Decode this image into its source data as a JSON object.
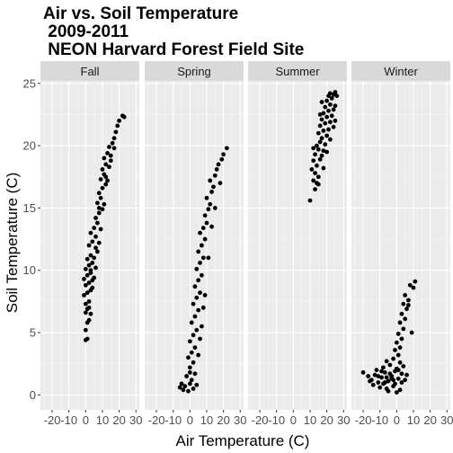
{
  "chart_data": {
    "type": "scatter",
    "title_lines": [
      "Air vs. Soil Temperature",
      "2009-2011",
      "NEON Harvard Forest Field Site"
    ],
    "xlabel": "Air Temperature (C)",
    "ylabel": "Soil Temperature (C)",
    "xlim": [
      -27,
      32
    ],
    "ylim": [
      -1.2,
      25.2
    ],
    "x_ticks": [
      -20,
      -10,
      0,
      10,
      20,
      30
    ],
    "y_ticks": [
      0,
      5,
      10,
      15,
      20,
      25
    ],
    "grid": true,
    "legend": "none",
    "point_color": "#000000",
    "panel_background": "#ebebeb",
    "strip_background": "#d9d9d9",
    "facets": [
      {
        "name": "Fall",
        "points": [
          [
            0,
            4.4
          ],
          [
            1,
            4.5
          ],
          [
            0,
            5.2
          ],
          [
            1,
            5.8
          ],
          [
            2,
            6.0
          ],
          [
            0,
            6.6
          ],
          [
            1,
            6.9
          ],
          [
            3,
            6.5
          ],
          [
            0,
            7.3
          ],
          [
            2,
            7.5
          ],
          [
            -1,
            8.0
          ],
          [
            1,
            8.2
          ],
          [
            3,
            8.4
          ],
          [
            0,
            8.8
          ],
          [
            2,
            9.0
          ],
          [
            4,
            8.6
          ],
          [
            -1,
            9.3
          ],
          [
            1,
            9.6
          ],
          [
            3,
            9.8
          ],
          [
            5,
            9.4
          ],
          [
            0,
            10.1
          ],
          [
            2,
            10.4
          ],
          [
            4,
            10.6
          ],
          [
            6,
            10.2
          ],
          [
            1,
            10.9
          ],
          [
            3,
            11.2
          ],
          [
            5,
            11.0
          ],
          [
            7,
            11.5
          ],
          [
            2,
            12.0
          ],
          [
            4,
            12.3
          ],
          [
            6,
            12.7
          ],
          [
            8,
            12.2
          ],
          [
            3,
            13.0
          ],
          [
            5,
            13.4
          ],
          [
            7,
            13.8
          ],
          [
            9,
            13.3
          ],
          [
            6,
            14.2
          ],
          [
            8,
            14.6
          ],
          [
            10,
            14.9
          ],
          [
            7,
            15.4
          ],
          [
            9,
            15.8
          ],
          [
            11,
            15.3
          ],
          [
            8,
            16.2
          ],
          [
            10,
            16.6
          ],
          [
            12,
            16.9
          ],
          [
            9,
            17.3
          ],
          [
            11,
            17.7
          ],
          [
            13,
            17.2
          ],
          [
            10,
            18.1
          ],
          [
            12,
            18.5
          ],
          [
            14,
            18.3
          ],
          [
            11,
            19.0
          ],
          [
            13,
            19.4
          ],
          [
            15,
            19.2
          ],
          [
            14,
            19.9
          ],
          [
            16,
            20.2
          ],
          [
            17,
            20.6
          ],
          [
            18,
            21.1
          ],
          [
            19,
            21.6
          ],
          [
            20,
            22.0
          ],
          [
            22,
            22.4
          ],
          [
            23,
            22.3
          ],
          [
            2,
            7.0
          ],
          [
            4,
            9.2
          ],
          [
            6,
            11.8
          ],
          [
            8,
            15.0
          ],
          [
            12,
            17.5
          ],
          [
            15,
            18.8
          ],
          [
            17,
            19.8
          ],
          [
            3,
            10.0
          ]
        ]
      },
      {
        "name": "Spring",
        "points": [
          [
            -6,
            0.6
          ],
          [
            -3,
            0.7
          ],
          [
            -1,
            0.3
          ],
          [
            0,
            0.9
          ],
          [
            2,
            0.5
          ],
          [
            4,
            0.8
          ],
          [
            -4,
            0.4
          ],
          [
            1,
            1.2
          ],
          [
            -2,
            1.5
          ],
          [
            3,
            1.7
          ],
          [
            0,
            2.2
          ],
          [
            2,
            2.6
          ],
          [
            -1,
            3.0
          ],
          [
            1,
            3.4
          ],
          [
            3,
            3.8
          ],
          [
            0,
            4.3
          ],
          [
            2,
            4.8
          ],
          [
            4,
            5.2
          ],
          [
            1,
            5.8
          ],
          [
            3,
            6.3
          ],
          [
            5,
            6.8
          ],
          [
            2,
            7.3
          ],
          [
            4,
            7.8
          ],
          [
            6,
            8.2
          ],
          [
            3,
            8.7
          ],
          [
            5,
            9.2
          ],
          [
            7,
            9.6
          ],
          [
            4,
            10.1
          ],
          [
            6,
            10.6
          ],
          [
            8,
            11.0
          ],
          [
            5,
            11.5
          ],
          [
            7,
            12.0
          ],
          [
            9,
            12.5
          ],
          [
            6,
            13.0
          ],
          [
            8,
            13.4
          ],
          [
            10,
            13.8
          ],
          [
            9,
            14.4
          ],
          [
            11,
            14.9
          ],
          [
            12,
            15.3
          ],
          [
            10,
            15.8
          ],
          [
            13,
            16.3
          ],
          [
            14,
            16.7
          ],
          [
            12,
            17.2
          ],
          [
            15,
            17.6
          ],
          [
            16,
            18.1
          ],
          [
            17,
            18.5
          ],
          [
            19,
            18.9
          ],
          [
            20,
            19.3
          ],
          [
            22,
            19.8
          ],
          [
            -5,
            0.9
          ],
          [
            5,
            3.2
          ],
          [
            7,
            5.5
          ],
          [
            9,
            8.0
          ],
          [
            11,
            11.0
          ],
          [
            13,
            13.5
          ],
          [
            15,
            15.0
          ],
          [
            18,
            17.0
          ],
          [
            0,
            1.8
          ],
          [
            6,
            4.5
          ],
          [
            8,
            7.0
          ]
        ]
      },
      {
        "name": "Summer",
        "points": [
          [
            10,
            15.6
          ],
          [
            12,
            17.2
          ],
          [
            13,
            17.8
          ],
          [
            11,
            18.1
          ],
          [
            14,
            18.4
          ],
          [
            15,
            17.5
          ],
          [
            12,
            18.8
          ],
          [
            16,
            18.9
          ],
          [
            13,
            19.3
          ],
          [
            17,
            19.2
          ],
          [
            15,
            19.7
          ],
          [
            18,
            19.6
          ],
          [
            14,
            20.0
          ],
          [
            16,
            20.3
          ],
          [
            19,
            20.1
          ],
          [
            17,
            20.6
          ],
          [
            20,
            20.8
          ],
          [
            15,
            21.0
          ],
          [
            18,
            21.2
          ],
          [
            21,
            21.3
          ],
          [
            16,
            21.6
          ],
          [
            19,
            21.8
          ],
          [
            22,
            21.9
          ],
          [
            17,
            22.1
          ],
          [
            20,
            22.3
          ],
          [
            23,
            22.4
          ],
          [
            18,
            22.6
          ],
          [
            21,
            22.8
          ],
          [
            24,
            22.9
          ],
          [
            19,
            23.1
          ],
          [
            22,
            23.3
          ],
          [
            25,
            23.2
          ],
          [
            20,
            23.6
          ],
          [
            23,
            23.8
          ],
          [
            21,
            24.0
          ],
          [
            24,
            24.1
          ],
          [
            22,
            24.2
          ],
          [
            25,
            24.3
          ],
          [
            14,
            17.0
          ],
          [
            18,
            18.2
          ],
          [
            13,
            16.5
          ],
          [
            15,
            16.9
          ],
          [
            20,
            19.5
          ],
          [
            24,
            21.5
          ],
          [
            12,
            19.8
          ],
          [
            22,
            20.5
          ],
          [
            25,
            22.0
          ],
          [
            17,
            23.5
          ],
          [
            26,
            24.0
          ],
          [
            16,
            22.5
          ]
        ]
      },
      {
        "name": "Winter",
        "points": [
          [
            -20,
            1.8
          ],
          [
            -17,
            1.5
          ],
          [
            -15,
            1.2
          ],
          [
            -13,
            1.6
          ],
          [
            -11,
            1.0
          ],
          [
            -9,
            1.4
          ],
          [
            -7,
            1.8
          ],
          [
            -5,
            1.1
          ],
          [
            -3,
            1.5
          ],
          [
            -1,
            0.9
          ],
          [
            1,
            1.3
          ],
          [
            3,
            1.7
          ],
          [
            5,
            1.2
          ],
          [
            -14,
            0.8
          ],
          [
            -10,
            0.6
          ],
          [
            -6,
            0.5
          ],
          [
            -2,
            0.7
          ],
          [
            2,
            0.4
          ],
          [
            -12,
            2.0
          ],
          [
            -8,
            2.2
          ],
          [
            -4,
            2.4
          ],
          [
            0,
            2.1
          ],
          [
            4,
            2.3
          ],
          [
            -6,
            2.7
          ],
          [
            -2,
            2.9
          ],
          [
            1,
            3.2
          ],
          [
            -1,
            3.6
          ],
          [
            2,
            3.8
          ],
          [
            0,
            4.2
          ],
          [
            3,
            4.5
          ],
          [
            1,
            4.9
          ],
          [
            4,
            5.3
          ],
          [
            2,
            5.8
          ],
          [
            5,
            6.1
          ],
          [
            3,
            6.5
          ],
          [
            6,
            6.9
          ],
          [
            4,
            7.3
          ],
          [
            7,
            7.6
          ],
          [
            5,
            8.0
          ],
          [
            10,
            8.6
          ],
          [
            11,
            9.1
          ],
          [
            8,
            8.8
          ],
          [
            7,
            7.2
          ],
          [
            -3,
            1.3
          ],
          [
            -9,
            1.9
          ],
          [
            -5,
            0.3
          ],
          [
            6,
            1.6
          ],
          [
            -16,
            1.1
          ],
          [
            0,
            0.2
          ],
          [
            -7,
            1.0
          ],
          [
            -4,
            1.7
          ],
          [
            -1,
            1.9
          ],
          [
            -11,
            1.5
          ],
          [
            2,
            2.6
          ],
          [
            -8,
            0.9
          ],
          [
            9,
            5.0
          ],
          [
            -2,
            1.2
          ],
          [
            -6,
            1.4
          ],
          [
            3,
            1.0
          ],
          [
            1,
            2.0
          ]
        ]
      }
    ]
  }
}
